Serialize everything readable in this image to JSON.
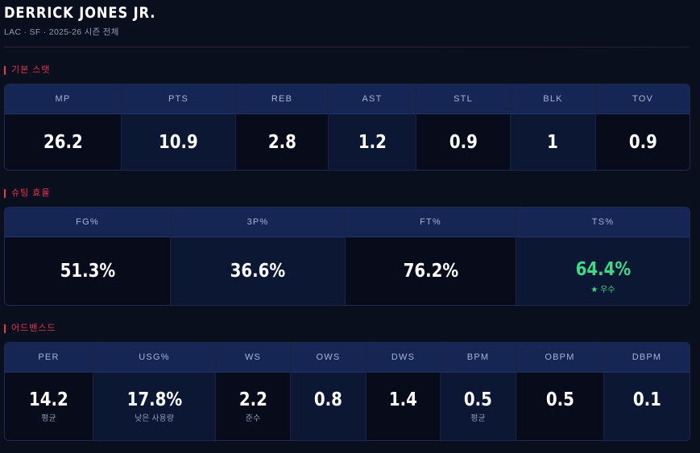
{
  "player": {
    "name": "DERRICK JONES JR.",
    "subtitle": "LAC · SF · 2025-26 시즌 전체"
  },
  "sections": {
    "basic": {
      "title": "기본 스탯",
      "stats": [
        {
          "label": "MP",
          "value": "26.2"
        },
        {
          "label": "PTS",
          "value": "10.9"
        },
        {
          "label": "REB",
          "value": "2.8"
        },
        {
          "label": "AST",
          "value": "1.2"
        },
        {
          "label": "STL",
          "value": "0.9"
        },
        {
          "label": "BLK",
          "value": "1"
        },
        {
          "label": "TOV",
          "value": "0.9"
        }
      ]
    },
    "shooting": {
      "title": "슈팅 효율",
      "stats": [
        {
          "label": "FG%",
          "value": "51.3%"
        },
        {
          "label": "3P%",
          "value": "36.6%"
        },
        {
          "label": "FT%",
          "value": "76.2%"
        },
        {
          "label": "TS%",
          "value": "64.4%",
          "note": "★ 우수",
          "highlight_color": "#3ddc84"
        }
      ]
    },
    "advanced": {
      "title": "어드밴스드",
      "stats": [
        {
          "label": "PER",
          "value": "14.2",
          "note": "평균"
        },
        {
          "label": "USG%",
          "value": "17.8%",
          "note": "낮은 사용량"
        },
        {
          "label": "WS",
          "value": "2.2",
          "note": "준수"
        },
        {
          "label": "OWS",
          "value": "0.8"
        },
        {
          "label": "DWS",
          "value": "1.4"
        },
        {
          "label": "BPM",
          "value": "0.5",
          "note": "평균"
        },
        {
          "label": "OBPM",
          "value": "0.5"
        },
        {
          "label": "DBPM",
          "value": "0.1"
        }
      ]
    }
  },
  "colors": {
    "accent": "#e8364f",
    "good": "#3ddc84",
    "header_bg": "#162654",
    "background": "#0a0f1e"
  }
}
